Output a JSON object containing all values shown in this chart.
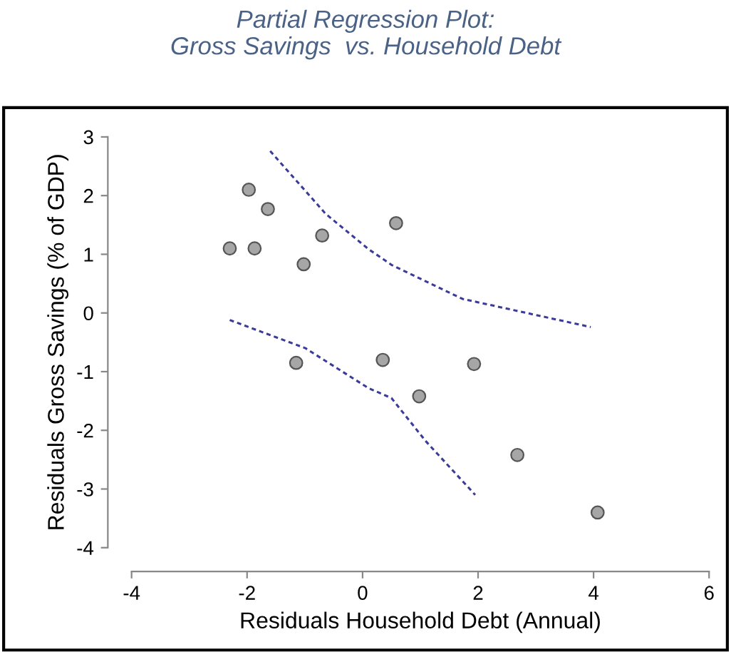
{
  "chart_data": {
    "type": "scatter",
    "title": "Partial Regression Plot:\nGross Savings  vs. Household Debt",
    "xlabel": "Residuals Household Debt (Annual)",
    "ylabel": "Residuals Gross Savings (% of GDP)",
    "x": [
      -2.3,
      -1.97,
      -1.87,
      -1.64,
      -1.15,
      -1.02,
      -0.7,
      0.35,
      0.58,
      0.98,
      1.93,
      2.68,
      4.07
    ],
    "series": [
      {
        "color": "#a6a6a6",
        "marker": "circle",
        "values": [
          1.1,
          2.1,
          1.1,
          1.77,
          -0.85,
          0.83,
          1.32,
          -0.8,
          1.53,
          -1.42,
          -0.87,
          -2.42,
          -3.4
        ]
      },
      {
        "type": "line",
        "color": "#3b3b9a",
        "line_style": "dashed",
        "marker": "none",
        "x": [
          -1.6,
          -0.64,
          0.1,
          0.5,
          1.73,
          3.95
        ],
        "values": [
          2.76,
          1.69,
          1.09,
          0.82,
          0.24,
          -0.24
        ]
      },
      {
        "type": "line",
        "color": "#3b3b9a",
        "line_style": "dashed",
        "marker": "none",
        "x": [
          -2.3,
          -0.99,
          0.1,
          0.5,
          1.09,
          1.95
        ],
        "values": [
          -0.12,
          -0.6,
          -1.28,
          -1.45,
          -2.18,
          -3.1
        ]
      }
    ],
    "xlim": [
      -4,
      6
    ],
    "ylim": [
      -4,
      3
    ],
    "xticks": [
      -4,
      -2,
      0,
      2,
      4,
      6
    ],
    "yticks": [
      -4,
      -3,
      -2,
      -1,
      0,
      1,
      2,
      3
    ],
    "grid": false,
    "legend": false
  }
}
